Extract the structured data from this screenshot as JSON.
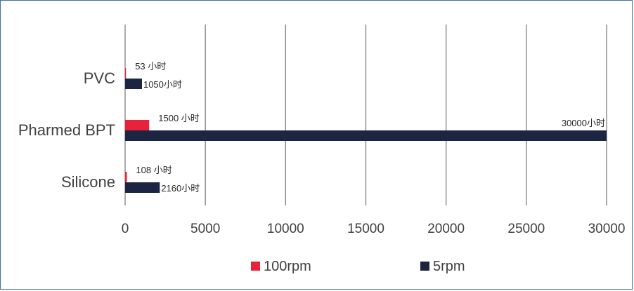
{
  "chart_data": {
    "type": "bar",
    "orientation": "horizontal",
    "categories": [
      "PVC",
      "Pharmed BPT",
      "Silicone"
    ],
    "series": [
      {
        "name": "100rpm",
        "color": "#e8223a",
        "values": [
          53,
          1500,
          108
        ],
        "labels": [
          "53 小时",
          "1500 小时",
          "108 小时"
        ]
      },
      {
        "name": "5rpm",
        "color": "#1c2541",
        "values": [
          1050,
          30000,
          2160
        ],
        "labels": [
          "1050小时",
          "30000小时",
          "2160小时"
        ]
      }
    ],
    "xlim": [
      0,
      30000
    ],
    "xticks": [
      "0",
      "5000",
      "10000",
      "15000",
      "20000",
      "25000",
      "30000"
    ],
    "grid": "vertical",
    "legend": "bottom",
    "title": "",
    "xlabel": "",
    "ylabel": ""
  }
}
